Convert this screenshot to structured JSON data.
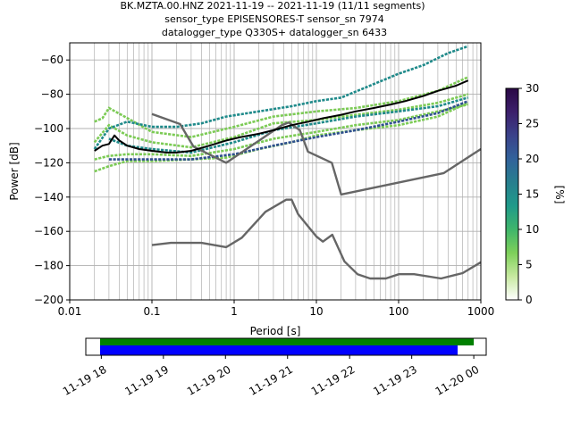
{
  "chart_data": [
    {
      "type": "heatmap",
      "title_lines": [
        "BK.MZTA.00.HNZ   2021-11-19 -- 2021-11-19  (11/11 segments)",
        "sensor_type EPISENSORES-T sensor_sn 7974",
        "datalogger_type Q330S+ datalogger_sn 6433"
      ],
      "xlabel": "Period [s]",
      "ylabel": "Power [dB]",
      "xscale": "log",
      "xlim": [
        0.01,
        1000
      ],
      "ylim": [
        -200,
        -50
      ],
      "xticks": [
        {
          "v": 0.01,
          "label": "0.01"
        },
        {
          "v": 0.1,
          "label": "0.1"
        },
        {
          "v": 1,
          "label": "1"
        },
        {
          "v": 10,
          "label": "10"
        },
        {
          "v": 100,
          "label": "100"
        },
        {
          "v": 1000,
          "label": "1000"
        }
      ],
      "yticks": [
        {
          "v": -60,
          "label": "−60"
        },
        {
          "v": -80,
          "label": "−80"
        },
        {
          "v": -100,
          "label": "−100"
        },
        {
          "v": -120,
          "label": "−120"
        },
        {
          "v": -140,
          "label": "−140"
        },
        {
          "v": -160,
          "label": "−160"
        },
        {
          "v": -180,
          "label": "−180"
        },
        {
          "v": -200,
          "label": "−200"
        }
      ],
      "grid": true,
      "colorbar": {
        "label": "[%]",
        "range": [
          0,
          30
        ],
        "ticks": [
          {
            "v": 0,
            "label": "0"
          },
          {
            "v": 5,
            "label": "5"
          },
          {
            "v": 10,
            "label": "10"
          },
          {
            "v": 15,
            "label": "15"
          },
          {
            "v": 20,
            "label": "20"
          },
          {
            "v": 25,
            "label": "25"
          },
          {
            "v": 30,
            "label": "30"
          }
        ],
        "colors": [
          "#ffffff",
          "#c7e9a0",
          "#7ed05a",
          "#3fb56b",
          "#1f9a8a",
          "#277f8e",
          "#32629b",
          "#3b428a",
          "#3c1f6b",
          "#2a0845"
        ]
      },
      "colors": {
        "low_noise_model": "#666666",
        "mode_line": "#000000",
        "band_green": "#7ccb55",
        "band_teal": "#1f8a8a",
        "band_navy": "#2f4f8f"
      },
      "series": [
        {
          "role": "high_noise_model",
          "x": [
            0.1,
            0.22,
            0.32,
            0.8,
            3.8,
            4.6,
            6.3,
            7.9,
            15.4,
            20,
            354.8,
            1000
          ],
          "y": [
            -91.5,
            -97.4,
            -110.5,
            -120,
            -98,
            -96.5,
            -101,
            -113.5,
            -120,
            -138.5,
            -126,
            -112
          ]
        },
        {
          "role": "low_noise_model",
          "x": [
            0.1,
            0.17,
            0.4,
            0.8,
            1.24,
            2.4,
            4.3,
            5,
            6,
            10,
            12,
            15.6,
            21.9,
            31.6,
            45,
            70,
            101,
            154,
            328,
            600,
            1000
          ],
          "y": [
            -168,
            -166.7,
            -166.7,
            -169.2,
            -163.7,
            -148.6,
            -141.5,
            -141.5,
            -150,
            -163,
            -166,
            -162,
            -177.5,
            -185,
            -187.5,
            -187.5,
            -185,
            -185,
            -187.5,
            -184.4,
            -178
          ]
        },
        {
          "role": "mode",
          "x": [
            0.02,
            0.025,
            0.03,
            0.035,
            0.04,
            0.05,
            0.07,
            0.1,
            0.15,
            0.2,
            0.3,
            0.5,
            0.8,
            1.2,
            2,
            3,
            5,
            8,
            12,
            20,
            30,
            50,
            80,
            120,
            200,
            300,
            500,
            700
          ],
          "y": [
            -113,
            -110,
            -109,
            -104,
            -107,
            -110,
            -112,
            -113,
            -114,
            -114,
            -113,
            -110,
            -107,
            -105,
            -103,
            -101,
            -98,
            -96,
            -94,
            -92,
            -90,
            -88,
            -86,
            -84,
            -81,
            -78,
            -75,
            -72
          ]
        }
      ],
      "psd_bands": [
        {
          "level": "green",
          "x": [
            0.02,
            0.03,
            0.05,
            0.1,
            0.3,
            1,
            3,
            10,
            30,
            100,
            300,
            700
          ],
          "y": [
            -108,
            -98,
            -104,
            -108,
            -111,
            -105,
            -97,
            -95,
            -92,
            -89,
            -85,
            -80
          ]
        },
        {
          "level": "green",
          "x": [
            0.02,
            0.03,
            0.05,
            0.1,
            0.3,
            1,
            3,
            10,
            30,
            100,
            300,
            700
          ],
          "y": [
            -118,
            -116,
            -115,
            -115,
            -116,
            -112,
            -106,
            -102,
            -98,
            -95,
            -90,
            -86
          ]
        },
        {
          "level": "green",
          "x": [
            0.02,
            0.025,
            0.03,
            0.06,
            0.1,
            0.3,
            1,
            3,
            10,
            30,
            100,
            300,
            700
          ],
          "y": [
            -96,
            -94,
            -88,
            -96,
            -102,
            -105,
            -99,
            -93,
            -90,
            -88,
            -84,
            -78,
            -70
          ]
        },
        {
          "level": "green",
          "x": [
            0.02,
            0.03,
            0.05,
            0.1,
            0.3,
            0.8,
            2,
            5,
            10,
            30,
            100,
            300,
            700
          ],
          "y": [
            -125,
            -122,
            -119,
            -119,
            -118,
            -117,
            -112,
            -108,
            -104,
            -101,
            -98,
            -93,
            -85
          ]
        },
        {
          "level": "teal",
          "x": [
            0.02,
            0.03,
            0.05,
            0.1,
            0.2,
            0.4,
            0.8,
            2,
            5,
            10,
            20,
            40,
            100,
            200,
            400,
            700
          ],
          "y": [
            -112,
            -100,
            -96,
            -99,
            -99,
            -97,
            -93,
            -90,
            -87,
            -84,
            -82,
            -76,
            -68,
            -63,
            -56,
            -52
          ]
        },
        {
          "level": "teal",
          "x": [
            0.03,
            0.05,
            0.1,
            0.3,
            1,
            3,
            10,
            30,
            100,
            300,
            700
          ],
          "y": [
            -106,
            -110,
            -112,
            -114,
            -108,
            -101,
            -97,
            -93,
            -90,
            -87,
            -82
          ]
        },
        {
          "level": "navy",
          "x": [
            0.03,
            0.1,
            0.3,
            1,
            3,
            10,
            30,
            100,
            300,
            700
          ],
          "y": [
            -118,
            -118,
            -118,
            -115,
            -110,
            -105,
            -101,
            -96,
            -91,
            -84
          ]
        }
      ]
    },
    {
      "type": "timeline",
      "ticks": [
        {
          "v": 18,
          "label": "11-19 18"
        },
        {
          "v": 19,
          "label": "11-19 19"
        },
        {
          "v": 20,
          "label": "11-19 20"
        },
        {
          "v": 21,
          "label": "11-19 21"
        },
        {
          "v": 22,
          "label": "11-19 22"
        },
        {
          "v": 23,
          "label": "11-19 23"
        },
        {
          "v": 24,
          "label": "11-20 00"
        }
      ],
      "xlim": [
        17.75,
        24.2
      ],
      "bars": [
        {
          "role": "data_available",
          "start": 17.98,
          "end": 24.0,
          "color": "#008000"
        },
        {
          "role": "psd_segments",
          "start": 17.98,
          "end": 23.74,
          "color": "#0000ff"
        }
      ]
    }
  ]
}
